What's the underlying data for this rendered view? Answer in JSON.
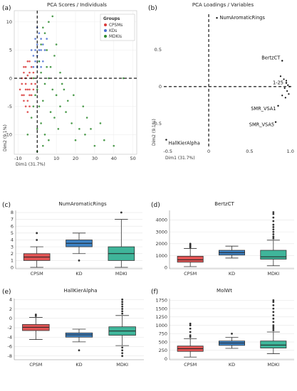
{
  "chart_data": [
    {
      "id": "a",
      "panel_label": "(a)",
      "type": "scatter",
      "title": "PCA Scores / Individuals",
      "xlabel": "Dim1 (31.7%)",
      "ylabel": "Dim2 (9.1%)",
      "xlim": [
        -12,
        52
      ],
      "ylim": [
        -13.5,
        12
      ],
      "xticks": [
        -10,
        0,
        10,
        20,
        30,
        40,
        50
      ],
      "yticks": [
        -10,
        -5,
        0,
        5,
        10
      ],
      "legend": {
        "title": "Groups",
        "position": "top-right",
        "entries": [
          {
            "name": "CPSMs",
            "color": "#d93a3a"
          },
          {
            "name": "KDs",
            "color": "#4a6fd1"
          },
          {
            "name": "MDKIs",
            "color": "#2e8b2e"
          }
        ]
      },
      "series": [
        {
          "name": "CPSMs",
          "color": "#d93a3a",
          "points": [
            [
              -6,
              -1
            ],
            [
              -5,
              0.5
            ],
            [
              -7,
              -3
            ],
            [
              -4,
              -2
            ],
            [
              -6,
              2
            ],
            [
              -3,
              -1
            ],
            [
              -8,
              -1
            ],
            [
              -5,
              -4
            ],
            [
              -4,
              1
            ],
            [
              -7,
              1
            ],
            [
              -3,
              0
            ],
            [
              -6,
              -2
            ],
            [
              -5,
              -6
            ],
            [
              -2,
              -2
            ],
            [
              -8,
              0
            ],
            [
              -4,
              -3
            ],
            [
              -6,
              -5
            ],
            [
              -3,
              2
            ],
            [
              -7,
              -4
            ],
            [
              -5,
              3
            ],
            [
              -9,
              -2
            ],
            [
              -2,
              1
            ],
            [
              -4,
              -5
            ],
            [
              -6,
              0
            ],
            [
              -1,
              -1
            ],
            [
              -5,
              -2
            ],
            [
              -7,
              2
            ],
            [
              -3,
              -3
            ],
            [
              -4,
              3
            ],
            [
              -8,
              -3
            ]
          ]
        },
        {
          "name": "KDs",
          "color": "#4a6fd1",
          "points": [
            [
              -2,
              4
            ],
            [
              0,
              6
            ],
            [
              1,
              3
            ],
            [
              -1,
              7
            ],
            [
              2,
              5
            ],
            [
              0,
              2
            ],
            [
              -3,
              5
            ],
            [
              3,
              6
            ],
            [
              1,
              8
            ],
            [
              -1,
              3
            ],
            [
              2,
              2
            ],
            [
              4,
              5
            ],
            [
              0,
              9
            ],
            [
              -2,
              2
            ],
            [
              3,
              3
            ],
            [
              5,
              7
            ],
            [
              1,
              5
            ],
            [
              -1,
              5
            ],
            [
              2,
              7
            ],
            [
              0,
              4
            ]
          ]
        },
        {
          "name": "MDKIs",
          "color": "#2e8b2e",
          "points": [
            [
              -2,
              0
            ],
            [
              0,
              -2
            ],
            [
              2,
              1
            ],
            [
              4,
              -1
            ],
            [
              1,
              3
            ],
            [
              6,
              0
            ],
            [
              3,
              -4
            ],
            [
              8,
              -2
            ],
            [
              5,
              2
            ],
            [
              10,
              -3
            ],
            [
              12,
              -5
            ],
            [
              7,
              -6
            ],
            [
              -1,
              -3
            ],
            [
              2,
              -8
            ],
            [
              4,
              -10
            ],
            [
              15,
              -6
            ],
            [
              18,
              -8
            ],
            [
              22,
              -9
            ],
            [
              25,
              -10
            ],
            [
              20,
              -11
            ],
            [
              30,
              -12
            ],
            [
              28,
              -9
            ],
            [
              35,
              -11
            ],
            [
              16,
              -4
            ],
            [
              14,
              -2
            ],
            [
              9,
              -7
            ],
            [
              11,
              -9
            ],
            [
              6,
              -11
            ],
            [
              3,
              -12
            ],
            [
              0,
              -9
            ],
            [
              -3,
              -7
            ],
            [
              -5,
              -10
            ],
            [
              2,
              6
            ],
            [
              4,
              8
            ],
            [
              6,
              10
            ],
            [
              8,
              11
            ],
            [
              5,
              5
            ],
            [
              3,
              9
            ],
            [
              9,
              4
            ],
            [
              7,
              2
            ],
            [
              12,
              1
            ],
            [
              10,
              6
            ],
            [
              13,
              -1
            ],
            [
              1,
              -5
            ],
            [
              -2,
              -5
            ],
            [
              0,
              -13
            ],
            [
              24,
              -5
            ],
            [
              19,
              -3
            ],
            [
              26,
              -7
            ],
            [
              33,
              -8
            ],
            [
              40,
              -12
            ],
            [
              45,
              0
            ]
          ]
        }
      ]
    },
    {
      "id": "b",
      "panel_label": "(b)",
      "type": "scatter",
      "title": "PCA Loadings / Variables",
      "xlabel": "Dim1 (31.7%)",
      "ylabel": "Dim2 (9.1%)",
      "xlim": [
        -0.55,
        1.02
      ],
      "ylim": [
        -0.82,
        0.98
      ],
      "xticks": [
        -0.5,
        0,
        0.5,
        1
      ],
      "xtick_labels": [
        "-0.5",
        "0",
        "0.5",
        "1.0"
      ],
      "yticks": [
        -0.5,
        0,
        0.5
      ],
      "ytick_labels": [
        "-0.5",
        "0",
        "0.5"
      ],
      "labeled_points": [
        {
          "label": "NumAromaticRings",
          "x": 0.1,
          "y": 0.93
        },
        {
          "label": "BertzCT",
          "x": 0.9,
          "y": 0.35
        },
        {
          "label": "1-25",
          "x": 0.95,
          "y": 0.05
        },
        {
          "label": "SMR_VSA1",
          "x": 0.85,
          "y": -0.26
        },
        {
          "label": "SMR_VSA5",
          "x": 0.82,
          "y": -0.48
        },
        {
          "label": "HallKierAlpha",
          "x": -0.52,
          "y": -0.72
        }
      ],
      "points": [
        [
          0.88,
          0.14
        ],
        [
          0.92,
          0.1
        ],
        [
          0.95,
          0.08
        ],
        [
          0.97,
          0.02
        ],
        [
          0.93,
          -0.02
        ],
        [
          0.96,
          -0.06
        ],
        [
          0.98,
          -0.1
        ],
        [
          0.9,
          -0.12
        ],
        [
          0.94,
          -0.15
        ],
        [
          0.99,
          0.0
        ]
      ]
    },
    {
      "id": "c",
      "panel_label": "(c)",
      "type": "box",
      "title": "NumAromaticRings",
      "categories": [
        "CPSM",
        "KD",
        "MDKI"
      ],
      "ylim": [
        -0.2,
        8.3
      ],
      "yticks": [
        0,
        1,
        2,
        3,
        4,
        5,
        6,
        7,
        8
      ],
      "boxes": [
        {
          "category": "CPSM",
          "min": 0,
          "q1": 1,
          "median": 1.5,
          "q3": 2,
          "max": 3,
          "outliers": [
            4,
            5
          ],
          "color": "#e05454"
        },
        {
          "category": "KD",
          "min": 2,
          "q1": 3,
          "median": 3.5,
          "q3": 4,
          "max": 5,
          "outliers": [
            1
          ],
          "color": "#3d82c4"
        },
        {
          "category": "MDKI",
          "min": 0,
          "q1": 1,
          "median": 2,
          "q3": 3,
          "max": 7,
          "outliers": [
            8
          ],
          "color": "#3fb59a"
        }
      ]
    },
    {
      "id": "d",
      "panel_label": "(d)",
      "type": "box",
      "title": "BertzCT",
      "categories": [
        "CPSM",
        "KD",
        "MDKI"
      ],
      "ylim": [
        -100,
        4800
      ],
      "yticks": [
        0,
        1000,
        2000,
        3000,
        4000
      ],
      "boxes": [
        {
          "category": "CPSM",
          "min": 80,
          "q1": 450,
          "median": 650,
          "q3": 950,
          "max": 1600,
          "outliers": [
            1700,
            1800,
            1900,
            2000
          ],
          "color": "#e05454"
        },
        {
          "category": "KD",
          "min": 800,
          "q1": 1050,
          "median": 1250,
          "q3": 1450,
          "max": 1800,
          "outliers": [],
          "color": "#3d82c4"
        },
        {
          "category": "MDKI",
          "min": 150,
          "q1": 700,
          "median": 900,
          "q3": 1450,
          "max": 2300,
          "outliers": [
            2450,
            2600,
            2800,
            3000,
            3200,
            3400,
            3600,
            3900,
            4200,
            4500,
            4650
          ],
          "color": "#3fb59a"
        }
      ]
    },
    {
      "id": "e",
      "panel_label": "(e)",
      "type": "box",
      "title": "HallKierAlpha",
      "categories": [
        "CPSM",
        "KD",
        "MDKI"
      ],
      "ylim": [
        -8.8,
        4.2
      ],
      "yticks": [
        -8,
        -6,
        -4,
        -2,
        0,
        2,
        4
      ],
      "boxes": [
        {
          "category": "CPSM",
          "min": -4.5,
          "q1": -2.6,
          "median": -1.9,
          "q3": -1.3,
          "max": 0.2,
          "outliers": [
            0.5,
            0.8
          ],
          "color": "#e05454"
        },
        {
          "category": "KD",
          "min": -5,
          "q1": -4,
          "median": -3.5,
          "q3": -3.1,
          "max": -2.3,
          "outliers": [
            -6.8
          ],
          "color": "#3d82c4"
        },
        {
          "category": "MDKI",
          "min": -5.8,
          "q1": -3.6,
          "median": -2.7,
          "q3": -1.8,
          "max": 0.6,
          "outliers": [
            1,
            1.5,
            2,
            2.5,
            3,
            3.5,
            4,
            -6.2,
            -6.8,
            -7.4,
            -8
          ],
          "color": "#3fb59a"
        }
      ]
    },
    {
      "id": "f",
      "panel_label": "(f)",
      "type": "box",
      "title": "MolWt",
      "categories": [
        "CPSM",
        "KD",
        "MDKI"
      ],
      "ylim": [
        -30,
        1800
      ],
      "yticks": [
        0,
        250,
        500,
        750,
        1000,
        1250,
        1500,
        1750
      ],
      "boxes": [
        {
          "category": "CPSM",
          "min": 50,
          "q1": 220,
          "median": 300,
          "q3": 380,
          "max": 600,
          "outliers": [
            650,
            700,
            800,
            900,
            1000,
            1050
          ],
          "color": "#e05454"
        },
        {
          "category": "KD",
          "min": 310,
          "q1": 400,
          "median": 470,
          "q3": 530,
          "max": 640,
          "outliers": [
            750
          ],
          "color": "#3d82c4"
        },
        {
          "category": "MDKI",
          "min": 150,
          "q1": 320,
          "median": 410,
          "q3": 530,
          "max": 800,
          "outliers": [
            850,
            900,
            950,
            1000,
            1100,
            1200,
            1300,
            1400,
            1500,
            1600,
            1700,
            1750
          ],
          "color": "#3fb59a"
        }
      ]
    }
  ]
}
